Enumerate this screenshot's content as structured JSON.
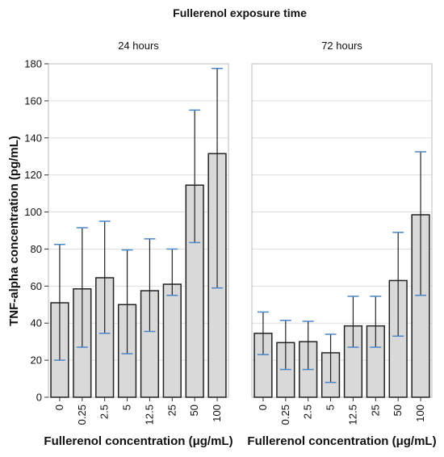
{
  "chart_data": {
    "type": "bar",
    "title": "Fullerenol exposure time",
    "ylabel": "TNF-alpha concentration (pg/mL)",
    "ylim": [
      0,
      180
    ],
    "yticks": [
      0,
      20,
      40,
      60,
      80,
      100,
      120,
      140,
      160,
      180
    ],
    "grid": true,
    "colors": {
      "bar_fill": "#d9d9d9",
      "bar_stroke": "#222222",
      "error_line": "#222222",
      "error_cap": "#4a86c8",
      "grid": "#dedede",
      "frame": "#bbbbbb"
    },
    "categories": [
      "0",
      "0.25",
      "2.5",
      "5",
      "12.5",
      "25",
      "50",
      "100"
    ],
    "panels": [
      {
        "label": "24 hours",
        "xlabel": "Fullerenol concentration (μg/mL)",
        "values": [
          51,
          58.5,
          64.5,
          50,
          57.5,
          61,
          114.5,
          131.5
        ],
        "err_low": [
          20,
          27,
          34.5,
          23.5,
          35.5,
          55,
          83.5,
          59
        ],
        "err_high": [
          82.5,
          91.5,
          95,
          79.5,
          85.5,
          80,
          155,
          177.5
        ]
      },
      {
        "label": "72 hours",
        "xlabel": "Fullerenol concentration (μg/mL)",
        "values": [
          34.5,
          29.5,
          30,
          24,
          38.5,
          38.5,
          63,
          98.5
        ],
        "err_low": [
          23,
          15,
          15,
          8,
          27,
          27,
          33,
          55
        ],
        "err_high": [
          46,
          41.5,
          41,
          34,
          54.5,
          54.5,
          89,
          132.5
        ]
      }
    ]
  }
}
